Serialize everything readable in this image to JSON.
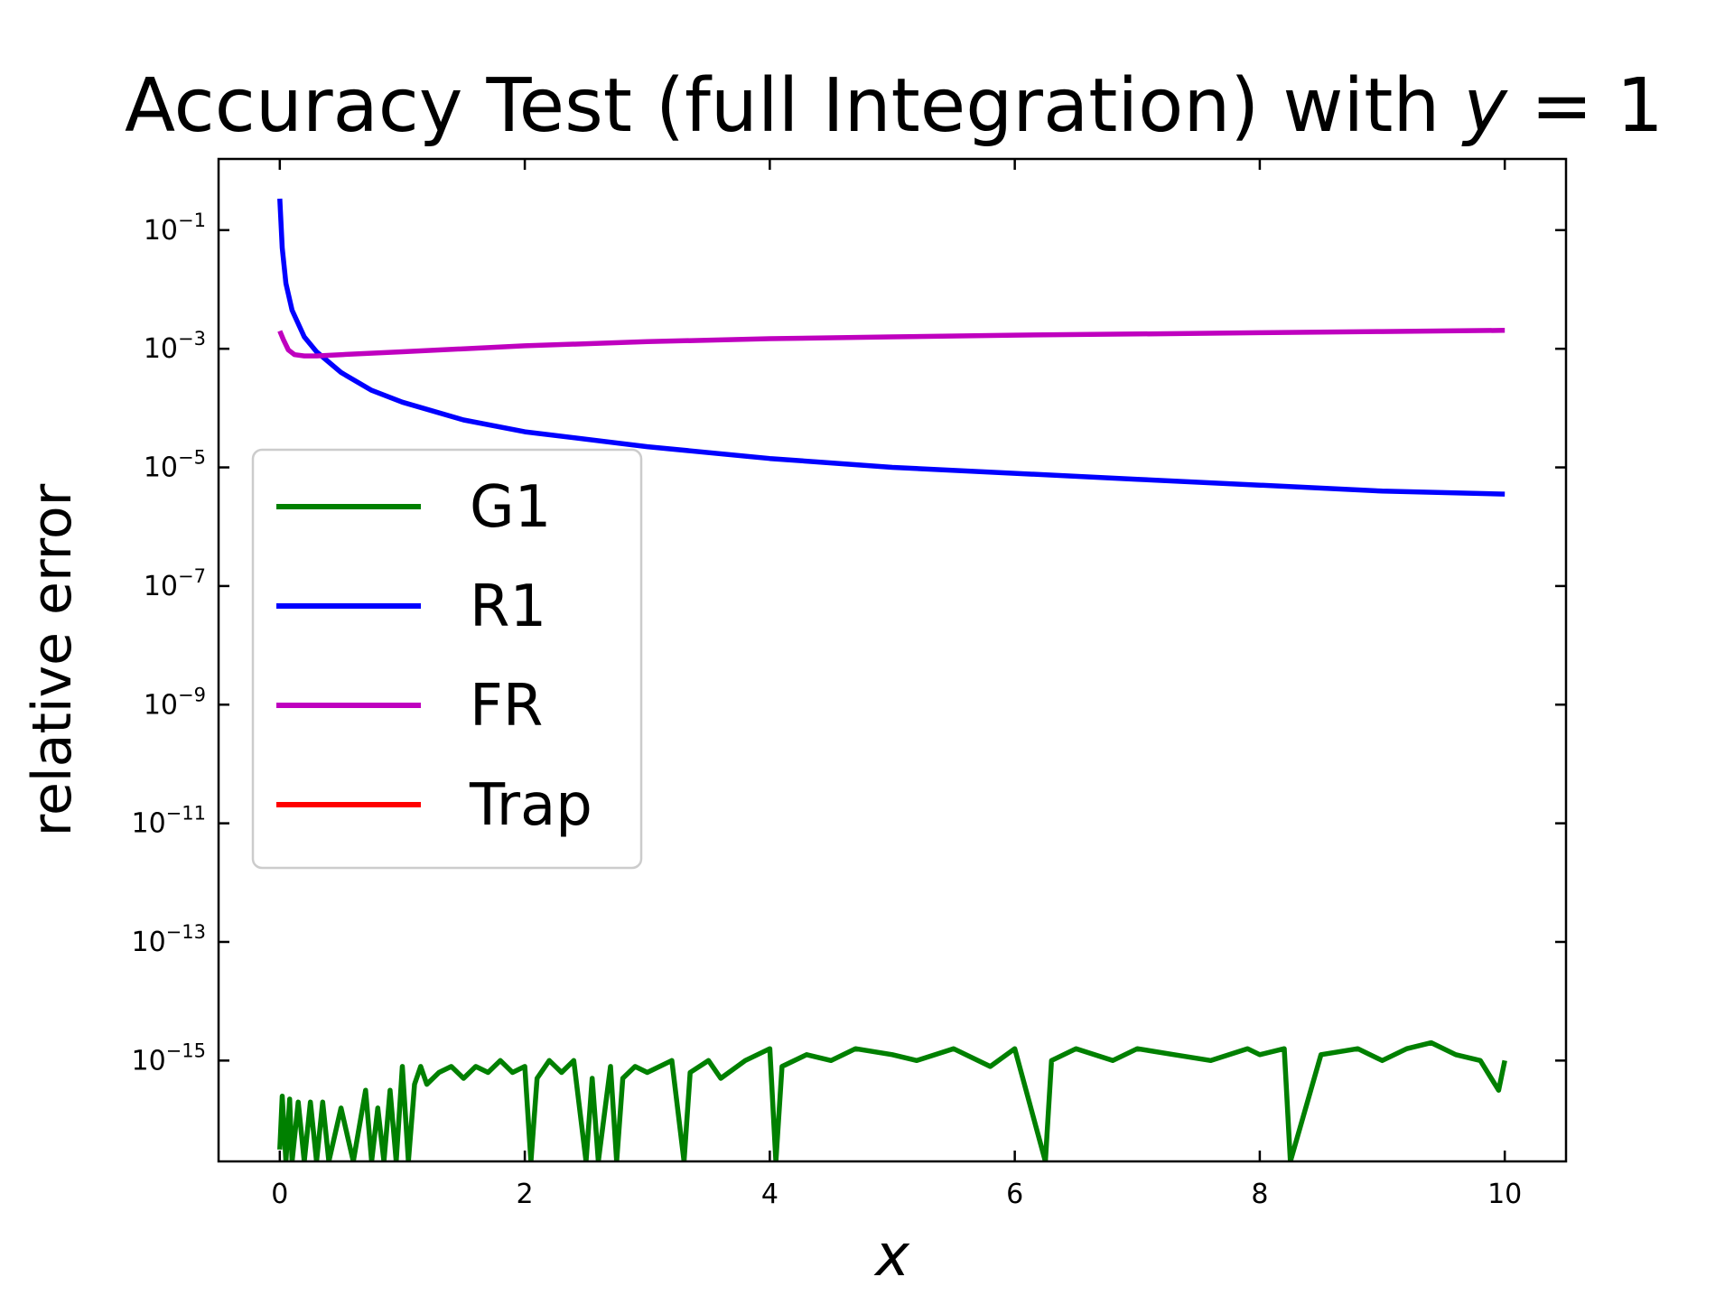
{
  "chart_data": {
    "type": "line",
    "title_prefix": "Accuracy Test (full Integration) with ",
    "title_var": "y",
    "title_suffix": " = 1",
    "xlabel": "x",
    "ylabel": "relative error",
    "xlim": [
      -0.5,
      10.5
    ],
    "ylim_log10": [
      -16.7,
      0.2
    ],
    "yscale": "log",
    "x_ticks": [
      0,
      2,
      4,
      6,
      8,
      10
    ],
    "y_ticks": [
      {
        "value": "1e-1",
        "exp": -1,
        "base": "10",
        "sup": "−1"
      },
      {
        "value": "1e-3",
        "exp": -3,
        "base": "10",
        "sup": "−3"
      },
      {
        "value": "1e-5",
        "exp": -5,
        "base": "10",
        "sup": "−5"
      },
      {
        "value": "1e-7",
        "exp": -7,
        "base": "10",
        "sup": "−7"
      },
      {
        "value": "1e-9",
        "exp": -9,
        "base": "10",
        "sup": "−9"
      },
      {
        "value": "1e-11",
        "exp": -11,
        "base": "10",
        "sup": "−11"
      },
      {
        "value": "1e-13",
        "exp": -13,
        "base": "10",
        "sup": "−13"
      },
      {
        "value": "1e-15",
        "exp": -15,
        "base": "10",
        "sup": "−15"
      }
    ],
    "legend_position": "center-left",
    "series": [
      {
        "name": "G1",
        "color": "#008000",
        "note": "noisy floating-point error floor",
        "x": [
          0,
          0.02,
          0.05,
          0.08,
          0.1,
          0.15,
          0.2,
          0.25,
          0.3,
          0.35,
          0.4,
          0.5,
          0.6,
          0.7,
          0.75,
          0.8,
          0.85,
          0.9,
          0.95,
          1.0,
          1.05,
          1.1,
          1.15,
          1.2,
          1.3,
          1.4,
          1.5,
          1.6,
          1.7,
          1.8,
          1.9,
          2.0,
          2.05,
          2.1,
          2.2,
          2.3,
          2.4,
          2.5,
          2.55,
          2.6,
          2.7,
          2.75,
          2.8,
          2.9,
          3.0,
          3.2,
          3.3,
          3.35,
          3.5,
          3.6,
          3.8,
          4.0,
          4.05,
          4.1,
          4.3,
          4.5,
          4.7,
          5.0,
          5.2,
          5.5,
          5.8,
          6.0,
          6.25,
          6.3,
          6.5,
          6.8,
          7.0,
          7.3,
          7.6,
          7.9,
          8.0,
          8.2,
          8.25,
          8.5,
          8.8,
          9.0,
          9.2,
          9.4,
          9.6,
          9.8,
          9.95,
          10.0
        ],
        "y_log10": [
          -16.5,
          -15.6,
          -16.7,
          -15.65,
          -16.7,
          -15.7,
          -16.7,
          -15.7,
          -16.7,
          -15.7,
          -16.7,
          -15.8,
          -16.7,
          -15.5,
          -16.7,
          -15.8,
          -16.7,
          -15.5,
          -16.7,
          -15.1,
          -16.7,
          -15.4,
          -15.1,
          -15.4,
          -15.2,
          -15.1,
          -15.3,
          -15.1,
          -15.2,
          -15.0,
          -15.2,
          -15.1,
          -16.7,
          -15.3,
          -15.0,
          -15.2,
          -15.0,
          -16.7,
          -15.3,
          -16.7,
          -15.1,
          -16.7,
          -15.3,
          -15.1,
          -15.2,
          -15.0,
          -16.7,
          -15.2,
          -15.0,
          -15.3,
          -15.0,
          -14.8,
          -16.7,
          -15.1,
          -14.9,
          -15.0,
          -14.8,
          -14.9,
          -15.0,
          -14.8,
          -15.1,
          -14.8,
          -16.7,
          -15.0,
          -14.8,
          -15.0,
          -14.8,
          -14.9,
          -15.0,
          -14.8,
          -14.9,
          -14.8,
          -16.7,
          -14.9,
          -14.8,
          -15.0,
          -14.8,
          -14.7,
          -14.9,
          -15.0,
          -15.5,
          -15.0
        ]
      },
      {
        "name": "R1",
        "color": "#0000ff",
        "x": [
          0,
          0.02,
          0.05,
          0.1,
          0.2,
          0.3,
          0.5,
          0.75,
          1.0,
          1.5,
          2.0,
          3.0,
          4.0,
          5.0,
          6.0,
          7.0,
          8.0,
          9.0,
          10.0
        ],
        "y_log10": [
          -0.47,
          -1.3,
          -1.9,
          -2.35,
          -2.8,
          -3.05,
          -3.4,
          -3.7,
          -3.9,
          -4.2,
          -4.4,
          -4.65,
          -4.85,
          -5.0,
          -5.1,
          -5.2,
          -5.3,
          -5.4,
          -5.45
        ]
      },
      {
        "name": "FR",
        "color": "#bf00bf",
        "x": [
          0,
          0.03,
          0.07,
          0.12,
          0.2,
          0.3,
          0.5,
          1.0,
          2.0,
          3.0,
          4.0,
          5.0,
          6.0,
          7.0,
          8.0,
          9.0,
          10.0
        ],
        "y_log10": [
          -2.7,
          -2.85,
          -3.02,
          -3.1,
          -3.12,
          -3.12,
          -3.1,
          -3.05,
          -2.95,
          -2.88,
          -2.83,
          -2.8,
          -2.77,
          -2.75,
          -2.73,
          -2.71,
          -2.69
        ]
      },
      {
        "name": "Trap",
        "color": "#ff0000",
        "x": [],
        "y_log10": []
      }
    ]
  }
}
